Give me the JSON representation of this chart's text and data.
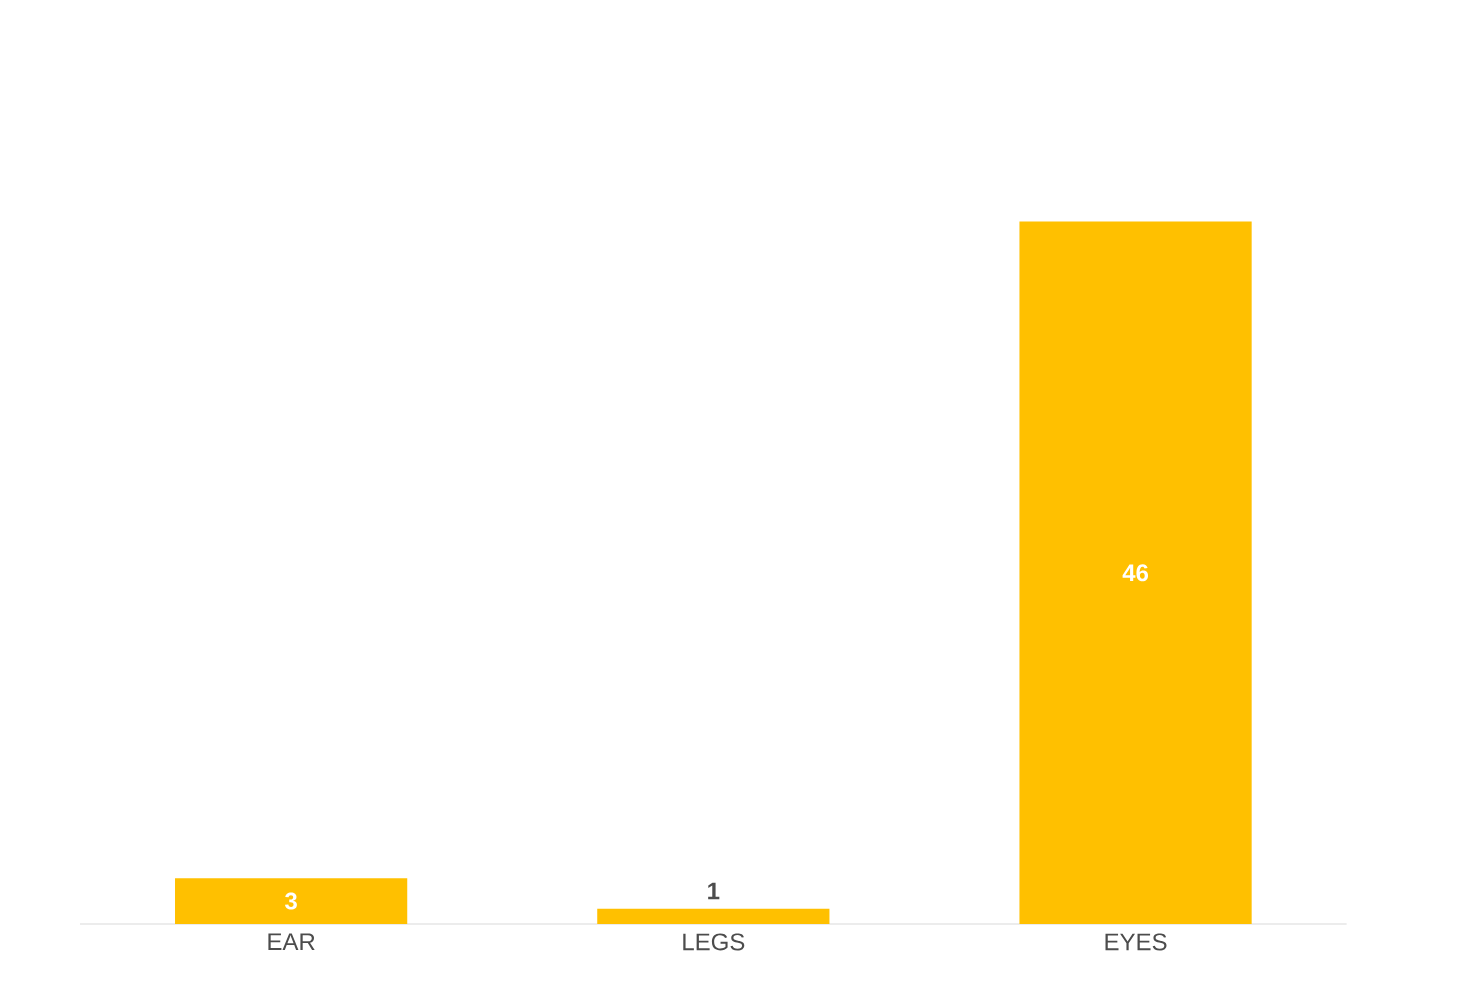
{
  "chart_data": {
    "type": "bar",
    "categories": [
      "EAR",
      "LEGS",
      "EYES"
    ],
    "values": [
      3,
      1,
      46
    ],
    "color": "#ffc000",
    "data_labels": true
  }
}
